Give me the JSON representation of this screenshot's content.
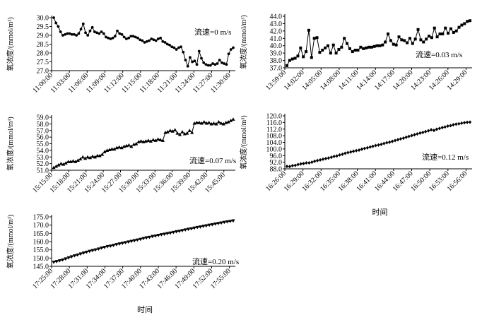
{
  "figure": {
    "y_axis_label": "氧浓度/(mmol/m³)"
  },
  "chart_data": [
    {
      "type": "line",
      "marker": "circle",
      "annotation": "流速=0 m/s",
      "xlabel": "",
      "ylabel": "氧浓度/(mmol/m³)",
      "ylim": [
        27.0,
        30.0
      ],
      "yticks": [
        "30.0",
        "29.5",
        "29.0",
        "28.5",
        "28.0",
        "27.5",
        "27.0"
      ],
      "xticks": [
        "11:00:00",
        "11:03:00",
        "11:06:00",
        "11:09:00",
        "11:12:00",
        "11:15:00",
        "11:18:00",
        "11:21:00",
        "11:24:00",
        "11:27:00",
        "11:30:00"
      ],
      "x_start": "11:00:00",
      "x_end": "11:31:00",
      "series": [
        {
          "values": [
            30.0,
            29.7,
            29.5,
            29.2,
            29.0,
            29.05,
            29.1,
            29.1,
            29.05,
            29.05,
            29.0,
            29.1,
            29.35,
            29.65,
            29.15,
            29.0,
            29.25,
            29.45,
            29.2,
            29.15,
            29.1,
            29.2,
            29.1,
            28.9,
            28.85,
            28.8,
            28.85,
            28.95,
            29.25,
            29.1,
            29.05,
            28.9,
            28.8,
            28.85,
            28.95,
            28.95,
            28.9,
            28.85,
            28.75,
            28.7,
            28.6,
            28.65,
            28.7,
            28.8,
            28.75,
            28.7,
            28.8,
            28.85,
            28.65,
            28.6,
            28.5,
            28.45,
            28.35,
            28.3,
            28.2,
            28.3,
            28.35,
            28.05,
            27.6,
            27.25,
            27.75,
            27.5,
            27.55,
            27.35,
            28.1,
            27.7,
            27.45,
            27.35,
            27.3,
            27.3,
            27.4,
            27.35,
            27.4,
            27.6,
            27.45,
            27.4,
            27.35,
            27.95,
            28.2,
            28.3
          ]
        }
      ]
    },
    {
      "type": "line",
      "marker": "square",
      "annotation": "流速=0.03 m/s",
      "xlabel": "",
      "ylabel": "氧浓度/(mmol/m³)",
      "ylim": [
        37.0,
        44.0
      ],
      "yticks": [
        "44.0",
        "43.0",
        "42.0",
        "41.0",
        "40.0",
        "39.0",
        "38.0",
        "37.0"
      ],
      "xticks": [
        "13:59:00",
        "14:02:00",
        "14:05:00",
        "14:08:00",
        "14:11:00",
        "14:14:00",
        "14:17:00",
        "14:20:00",
        "14:23:00",
        "14:26:00",
        "14:29:00"
      ],
      "x_start": "13:59:00",
      "x_end": "14:30:00",
      "series": [
        {
          "values": [
            37.3,
            38.0,
            38.2,
            38.3,
            38.6,
            39.7,
            38.5,
            39.2,
            42.1,
            38.4,
            41.0,
            41.1,
            39.1,
            39.4,
            39.7,
            40.0,
            39.0,
            40.1,
            39.0,
            39.5,
            39.8,
            41.0,
            40.3,
            39.6,
            39.2,
            39.4,
            39.4,
            39.8,
            39.6,
            39.7,
            39.8,
            39.8,
            39.9,
            40.0,
            40.0,
            40.1,
            40.5,
            41.6,
            40.7,
            40.2,
            40.1,
            41.2,
            40.8,
            40.7,
            40.4,
            41.0,
            40.3,
            40.9,
            42.2,
            40.8,
            40.5,
            40.9,
            41.3,
            41.1,
            42.4,
            41.2,
            41.6,
            41.6,
            42.4,
            41.7,
            42.3,
            41.8,
            42.0,
            42.5,
            42.8,
            43.0,
            43.3,
            43.4
          ]
        }
      ]
    },
    {
      "type": "line",
      "marker": "triangle",
      "annotation": "流速=0.07 m/s",
      "xlabel": "",
      "ylabel": "氧浓度/(mmol/m³)",
      "ylim": [
        51.0,
        59.0
      ],
      "yticks": [
        "59.0",
        "58.0",
        "57.0",
        "56.0",
        "55.0",
        "54.0",
        "53.0",
        "52.0",
        "51.0"
      ],
      "xticks": [
        "15:15:00",
        "15:18:00",
        "15:21:00",
        "15:24:00",
        "15:27:00",
        "15:30:00",
        "15:33:00",
        "15:36:00",
        "15:39:00",
        "15:42:00",
        "15:45:00"
      ],
      "x_start": "15:15:00",
      "x_end": "15:47:00",
      "series": [
        {
          "values": [
            51.4,
            51.6,
            51.8,
            52.0,
            51.9,
            52.1,
            52.3,
            52.3,
            52.4,
            52.3,
            52.5,
            52.7,
            53.0,
            52.8,
            53.0,
            52.9,
            53.1,
            53.0,
            53.2,
            53.2,
            53.4,
            53.8,
            54.0,
            54.1,
            54.2,
            54.2,
            54.4,
            54.5,
            54.4,
            54.6,
            54.7,
            54.8,
            54.6,
            54.9,
            55.0,
            55.3,
            55.4,
            55.3,
            55.4,
            55.5,
            55.4,
            55.6,
            55.5,
            55.7,
            55.6,
            55.5,
            56.7,
            56.8,
            57.0,
            56.9,
            57.1,
            56.6,
            56.4,
            56.8,
            56.5,
            56.6,
            57.0,
            56.7,
            58.1,
            58.2,
            58.2,
            58.1,
            58.3,
            58.1,
            58.2,
            58.0,
            58.1,
            58.0,
            58.3,
            58.1,
            58.0,
            58.2,
            58.3,
            58.5,
            58.7
          ]
        }
      ]
    },
    {
      "type": "line",
      "marker": "diamond",
      "annotation": "流速=0.12 m/s",
      "xlabel": "时间",
      "ylabel": "氧浓度/(mmol/m³)",
      "ylim": [
        88.0,
        120.0
      ],
      "yticks": [
        "120.0",
        "116.0",
        "112.0",
        "108.0",
        "104.0",
        "100.0",
        "96.0",
        "92.0",
        "88.0"
      ],
      "xticks": [
        "16:26:00",
        "16:29:00",
        "16:32:00",
        "16:35:00",
        "16:38:00",
        "16:41:00",
        "16:44:00",
        "16:47:00",
        "16:50:00",
        "16:53:00",
        "16:56:00"
      ],
      "x_start": "16:26:00",
      "x_end": "16:57:00",
      "series": [
        {
          "values": [
            89.5,
            89.4,
            89.9,
            90.1,
            90.6,
            91.0,
            91.2,
            91.6,
            91.6,
            92.0,
            92.6,
            93.0,
            93.4,
            93.8,
            94.2,
            94.5,
            95.0,
            95.5,
            95.8,
            96.4,
            96.8,
            97.4,
            97.8,
            98.2,
            98.6,
            99.0,
            99.3,
            99.9,
            100.3,
            100.7,
            101.2,
            101.6,
            102.1,
            102.4,
            102.8,
            103.3,
            103.8,
            104.1,
            104.6,
            105.1,
            105.6,
            106.1,
            106.5,
            107.1,
            107.6,
            108.1,
            108.6,
            109.1,
            109.6,
            110.0,
            110.5,
            111.0,
            111.6,
            111.2,
            111.9,
            112.4,
            112.9,
            113.3,
            113.8,
            114.1,
            114.6,
            115.0,
            115.2,
            115.6,
            115.9,
            116.1,
            116.2
          ]
        }
      ]
    },
    {
      "type": "line",
      "marker": "inverted-triangle",
      "annotation": "流速=0.20 m/s",
      "xlabel": "时间",
      "ylabel": "氧浓度/(mmol/m³)",
      "ylim": [
        145.0,
        175.0
      ],
      "yticks": [
        "175.0",
        "170.0",
        "165.0",
        "160.0",
        "155.0",
        "150.0",
        "145.0"
      ],
      "xticks": [
        "17:25:00",
        "17:28:00",
        "17:31:00",
        "17:34:00",
        "17:37:00",
        "17:40:00",
        "17:43:00",
        "17:46:00",
        "17:49:00",
        "17:52:00",
        "17:55:00"
      ],
      "x_start": "17:25:00",
      "x_end": "17:56:00",
      "series": [
        {
          "values": [
            147.5,
            147.9,
            148.4,
            148.9,
            149.5,
            150.2,
            150.8,
            151.4,
            151.9,
            152.5,
            153.1,
            153.6,
            154.1,
            154.6,
            155.0,
            155.5,
            156.1,
            156.5,
            157.0,
            157.3,
            157.7,
            158.2,
            158.6,
            159.0,
            159.4,
            159.8,
            160.2,
            160.6,
            161.0,
            161.4,
            161.9,
            162.3,
            162.6,
            163.1,
            163.4,
            163.8,
            164.2,
            164.5,
            164.9,
            165.2,
            165.6,
            166.0,
            166.3,
            166.7,
            167.1,
            167.5,
            167.8,
            168.2,
            168.6,
            168.9,
            169.3,
            169.6,
            170.0,
            170.3,
            170.7,
            171.0,
            171.3,
            171.7,
            172.0,
            172.3,
            172.6
          ]
        }
      ]
    }
  ]
}
